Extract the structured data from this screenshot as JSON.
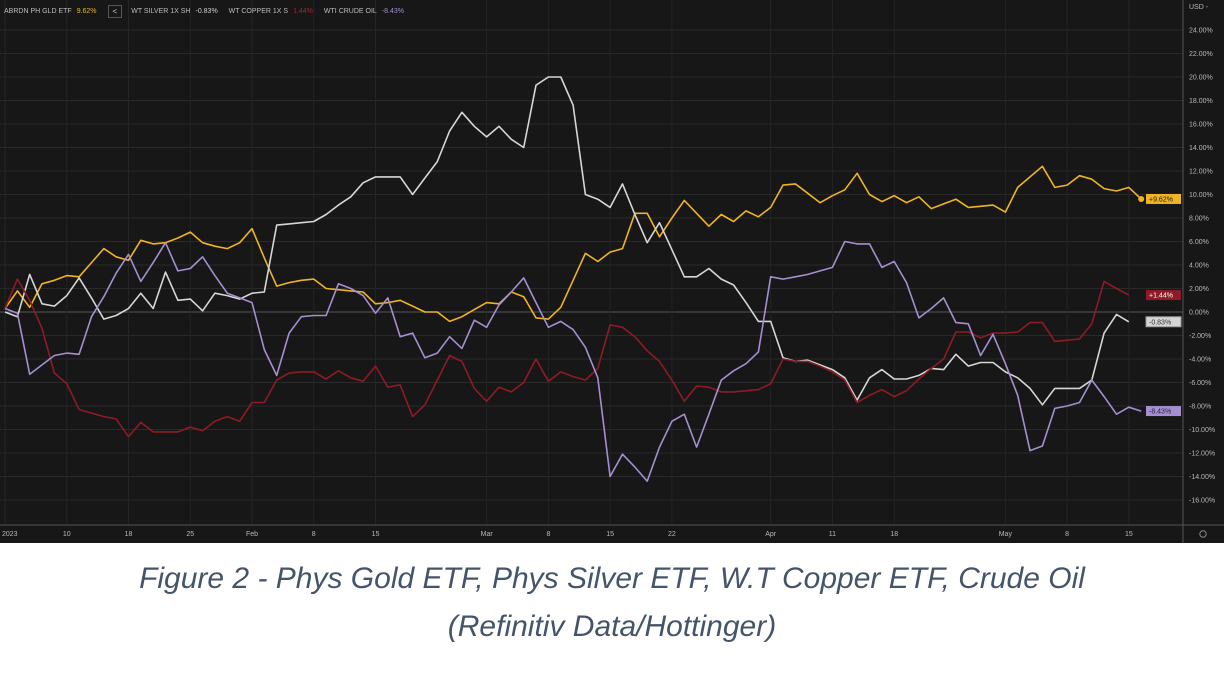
{
  "legend": {
    "back_label": "<",
    "items": [
      {
        "name": "ABRDN PH GLD ETF",
        "value": "9.62%",
        "color": "#f0b323"
      },
      {
        "name": "WT SILVER 1X SH",
        "value": "-0.83%",
        "color": "#cfcfcf"
      },
      {
        "name": "WT COPPER 1X S",
        "value": "1.44%",
        "color": "#b0222c"
      },
      {
        "name": "WTI CRUDE OIL",
        "value": "-8.43%",
        "color": "#a58fd0"
      }
    ]
  },
  "caption": {
    "line1": "Figure 2 - Phys Gold ETF, Phys Silver ETF, W.T Copper ETF, Crude Oil",
    "line2": "(Refinitiv Data/Hottinger)"
  },
  "chart_data": {
    "type": "line",
    "currency_label": "USD -",
    "ylim": [
      -17,
      25
    ],
    "grid": true,
    "legend_placement": "top-left",
    "y_ticks": [
      24,
      22,
      20,
      18,
      16,
      14,
      12,
      10,
      8,
      6,
      4,
      2,
      0,
      -2,
      -4,
      -6,
      -8,
      -10,
      -12,
      -14,
      -16
    ],
    "y_tick_labels": [
      "24.00%",
      "22.00%",
      "20.00%",
      "18.00%",
      "16.00%",
      "14.00%",
      "12.00%",
      "10.00%",
      "8.00%",
      "6.00%",
      "4.00%",
      "2.00%",
      "0.00%",
      "-2.00%",
      "-4.00%",
      "-6.00%",
      "-8.00%",
      "-10.00%",
      "-12.00%",
      "-14.00%",
      "-16.00%"
    ],
    "x_ticks": [
      {
        "label": "2023",
        "date": "2023-01-03"
      },
      {
        "label": "10",
        "date": "2023-01-10"
      },
      {
        "label": "18",
        "date": "2023-01-18"
      },
      {
        "label": "25",
        "date": "2023-01-25"
      },
      {
        "label": "Feb",
        "date": "2023-02-01"
      },
      {
        "label": "8",
        "date": "2023-02-08"
      },
      {
        "label": "15",
        "date": "2023-02-15"
      },
      {
        "label": "Mar",
        "date": "2023-03-01"
      },
      {
        "label": "8",
        "date": "2023-03-08"
      },
      {
        "label": "15",
        "date": "2023-03-15"
      },
      {
        "label": "22",
        "date": "2023-03-22"
      },
      {
        "label": "Apr",
        "date": "2023-04-03"
      },
      {
        "label": "11",
        "date": "2023-04-11"
      },
      {
        "label": "18",
        "date": "2023-04-18"
      },
      {
        "label": "May",
        "date": "2023-05-01"
      },
      {
        "label": "8",
        "date": "2023-05-08"
      },
      {
        "label": "15",
        "date": "2023-05-15"
      }
    ],
    "dates": [
      "2023-01-03",
      "2023-01-04",
      "2023-01-05",
      "2023-01-06",
      "2023-01-09",
      "2023-01-10",
      "2023-01-11",
      "2023-01-12",
      "2023-01-13",
      "2023-01-17",
      "2023-01-18",
      "2023-01-19",
      "2023-01-20",
      "2023-01-23",
      "2023-01-24",
      "2023-01-25",
      "2023-01-26",
      "2023-01-27",
      "2023-01-30",
      "2023-01-31",
      "2023-02-01",
      "2023-02-02",
      "2023-02-03",
      "2023-02-06",
      "2023-02-07",
      "2023-02-08",
      "2023-02-09",
      "2023-02-10",
      "2023-02-13",
      "2023-02-14",
      "2023-02-15",
      "2023-02-16",
      "2023-02-17",
      "2023-02-21",
      "2023-02-22",
      "2023-02-23",
      "2023-02-24",
      "2023-02-27",
      "2023-02-28",
      "2023-03-01",
      "2023-03-02",
      "2023-03-03",
      "2023-03-06",
      "2023-03-07",
      "2023-03-08",
      "2023-03-09",
      "2023-03-10",
      "2023-03-13",
      "2023-03-14",
      "2023-03-15",
      "2023-03-16",
      "2023-03-17",
      "2023-03-20",
      "2023-03-21",
      "2023-03-22",
      "2023-03-23",
      "2023-03-24",
      "2023-03-27",
      "2023-03-28",
      "2023-03-29",
      "2023-03-30",
      "2023-03-31",
      "2023-04-03",
      "2023-04-04",
      "2023-04-05",
      "2023-04-06",
      "2023-04-10",
      "2023-04-11",
      "2023-04-12",
      "2023-04-13",
      "2023-04-14",
      "2023-04-17",
      "2023-04-18",
      "2023-04-19",
      "2023-04-20",
      "2023-04-21",
      "2023-04-24",
      "2023-04-25",
      "2023-04-26",
      "2023-04-27",
      "2023-04-28",
      "2023-05-01",
      "2023-05-02",
      "2023-05-03",
      "2023-05-04",
      "2023-05-05",
      "2023-05-08",
      "2023-05-09",
      "2023-05-10",
      "2023-05-11",
      "2023-05-12",
      "2023-05-15",
      "2023-05-16"
    ],
    "series": [
      {
        "name": "ABRDN PH GLD ETF",
        "color": "#f0b323",
        "last_label": "+9.62%",
        "badge_text_color": "#1a1a1a",
        "end_marker": true,
        "values": [
          0.3,
          1.8,
          0.4,
          2.4,
          2.7,
          3.1,
          3.0,
          4.2,
          5.4,
          4.7,
          4.4,
          6.1,
          5.8,
          5.9,
          6.3,
          6.8,
          5.9,
          5.6,
          5.4,
          5.9,
          7.1,
          4.6,
          2.2,
          2.5,
          2.7,
          2.8,
          2.0,
          1.9,
          1.8,
          1.7,
          0.7,
          0.8,
          1.0,
          0.5,
          0,
          0,
          -0.8,
          -0.4,
          0.2,
          0.8,
          0.7,
          1.7,
          1.3,
          -0.5,
          -0.6,
          0.4,
          2.7,
          5.0,
          4.3,
          5.1,
          5.4,
          8.4,
          8.4,
          6.4,
          8.0,
          9.5,
          8.4,
          7.3,
          8.3,
          7.7,
          8.6,
          8.1,
          8.9,
          10.8,
          10.9,
          10.1,
          9.3,
          9.9,
          10.4,
          11.8,
          10.0,
          9.4,
          9.9,
          9.3,
          9.8,
          8.8,
          9.2,
          9.6,
          8.9,
          9.0,
          9.1,
          8.5,
          10.6,
          11.5,
          12.4,
          10.6,
          10.8,
          11.6,
          11.3,
          10.5,
          10.3,
          10.6,
          9.62
        ]
      },
      {
        "name": "WT SILVER 1X SH",
        "color": "#d6d6d6",
        "last_label": "-0.83%",
        "badge_text_color": "#333333",
        "values": [
          0,
          -0.4,
          3.2,
          0.7,
          0.5,
          1.4,
          2.9,
          1.2,
          -0.6,
          -0.3,
          0.3,
          1.6,
          0.3,
          3.4,
          1.0,
          1.1,
          0.1,
          1.6,
          1.4,
          1.1,
          1.6,
          1.7,
          7.4,
          7.5,
          7.6,
          7.7,
          8.3,
          9.1,
          9.8,
          11.0,
          11.5,
          11.5,
          11.5,
          10.0,
          11.4,
          12.8,
          15.4,
          17.0,
          15.8,
          14.9,
          15.8,
          14.7,
          14.0,
          19.3,
          20.0,
          20.0,
          17.6,
          10.0,
          9.6,
          8.9,
          10.9,
          8.3,
          5.9,
          7.6,
          5.3,
          3.0,
          3.0,
          3.7,
          2.8,
          2.3,
          0.8,
          -0.8,
          -0.8,
          -3.9,
          -4.2,
          -4.1,
          -4.5,
          -4.9,
          -5.6,
          -7.5,
          -5.6,
          -4.9,
          -5.7,
          -5.7,
          -5.4,
          -4.8,
          -4.9,
          -3.6,
          -4.6,
          -4.3,
          -4.3,
          -5.1,
          -5.6,
          -6.5,
          -7.9,
          -6.5,
          -6.5,
          -6.5,
          -5.8,
          -1.8,
          -0.2,
          -0.83,
          null
        ]
      },
      {
        "name": "WT COPPER 1X S",
        "color": "#8e1b25",
        "last_label": "+1.44%",
        "badge_text_color": "#ffffff",
        "values": [
          0.3,
          2.8,
          1.0,
          -1.4,
          -5.2,
          -6.1,
          -8.3,
          -8.6,
          -8.9,
          -9.1,
          -10.6,
          -9.4,
          -10.2,
          -10.2,
          -10.2,
          -9.8,
          -10.1,
          -9.3,
          -8.9,
          -9.3,
          -7.7,
          -7.7,
          -5.8,
          -5.2,
          -5.1,
          -5.1,
          -5.7,
          -5.0,
          -5.6,
          -5.9,
          -4.6,
          -6.4,
          -6.2,
          -8.9,
          -7.9,
          -5.8,
          -3.7,
          -4.2,
          -6.5,
          -7.6,
          -6.4,
          -6.8,
          -6.0,
          -4.0,
          -5.9,
          -5.1,
          -5.5,
          -5.8,
          -4.8,
          -1.1,
          -1.3,
          -2.1,
          -3.3,
          -4.2,
          -5.8,
          -7.6,
          -6.3,
          -6.4,
          -6.8,
          -6.8,
          -6.7,
          -6.6,
          -6.1,
          -4.0,
          -4.2,
          -4.2,
          -4.6,
          -5.1,
          -5.8,
          -7.7,
          -7.1,
          -6.6,
          -7.2,
          -6.7,
          -5.7,
          -4.8,
          -4.0,
          -1.7,
          -1.7,
          -2.2,
          -1.8,
          -1.8,
          -1.7,
          -0.9,
          -0.9,
          -2.5,
          -2.4,
          -2.3,
          -1.0,
          2.6,
          2.0,
          1.44,
          null
        ]
      },
      {
        "name": "WTI CRUDE OIL",
        "color": "#a58fd0",
        "last_label": "-8.43%",
        "badge_text_color": "#2a2140",
        "values": [
          0.3,
          -0.1,
          -5.3,
          -4.5,
          -3.7,
          -3.5,
          -3.6,
          -0.4,
          1.3,
          3.3,
          4.9,
          2.6,
          4.2,
          5.9,
          3.5,
          3.7,
          4.7,
          3.1,
          1.6,
          1.2,
          0.8,
          -3.2,
          -5.4,
          -1.8,
          -0.4,
          -0.3,
          -0.3,
          2.4,
          2.0,
          1.4,
          -0.1,
          1.2,
          -2.1,
          -1.8,
          -3.9,
          -3.5,
          -2.1,
          -3.1,
          -0.7,
          -1.3,
          0.6,
          1.7,
          2.9,
          0.8,
          -1.3,
          -0.8,
          -1.5,
          -3.0,
          -5.6,
          -14.0,
          -12.1,
          -13.2,
          -14.4,
          -11.5,
          -9.3,
          -8.7,
          -11.5,
          -8.7,
          -5.8,
          -5.0,
          -4.4,
          -3.4,
          3.0,
          2.8,
          3.0,
          3.2,
          3.5,
          3.8,
          6.0,
          5.8,
          5.8,
          3.8,
          4.3,
          2.5,
          -0.5,
          0.3,
          1.2,
          -0.9,
          -1.0,
          -3.7,
          -1.9,
          -4.4,
          -7.1,
          -11.8,
          -11.4,
          -8.2,
          -8.0,
          -7.7,
          -5.8,
          -7.2,
          -8.7,
          -8.1,
          -8.43
        ]
      }
    ]
  }
}
